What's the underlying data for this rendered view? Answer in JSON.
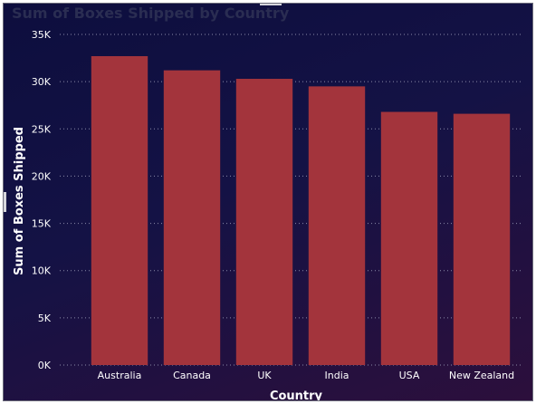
{
  "colors": {
    "background_start": "#0d0e3e",
    "background_end": "#2c0f3c",
    "bar": "#a3343c",
    "gridline": "#8a8aa8",
    "text": "#ffffff"
  },
  "chart_data": {
    "type": "bar",
    "title": "Sum of Boxes Shipped by Country",
    "xlabel": "Country",
    "ylabel": "Sum of Boxes Shipped",
    "categories": [
      "Australia",
      "Canada",
      "UK",
      "India",
      "USA",
      "New Zealand"
    ],
    "values": [
      32700,
      31200,
      30300,
      29500,
      26800,
      26600
    ],
    "ylim": [
      0,
      35000
    ],
    "yticks": [
      0,
      5000,
      10000,
      15000,
      20000,
      25000,
      30000,
      35000
    ],
    "ytick_labels": [
      "0K",
      "5K",
      "10K",
      "15K",
      "20K",
      "25K",
      "30K",
      "35K"
    ],
    "grid": true,
    "legend": "none"
  }
}
